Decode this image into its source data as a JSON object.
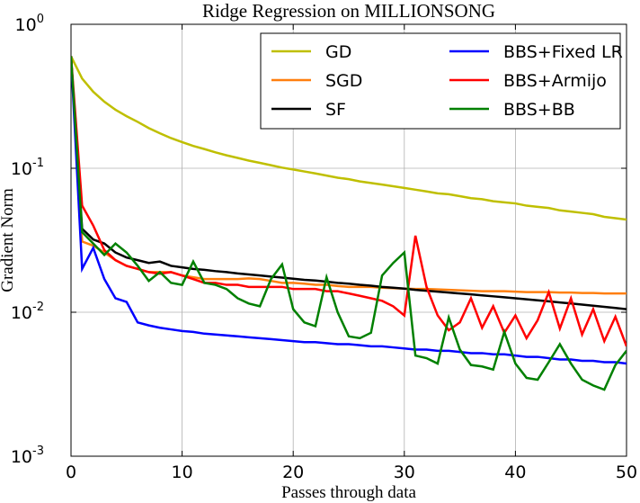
{
  "chart_data": {
    "type": "line",
    "title": "Ridge Regression on MILLIONSONG",
    "xlabel": "Passes through data",
    "ylabel": "Gradient Norm",
    "log_y": true,
    "grid": true,
    "legend": "upper right",
    "legend_columns": 2,
    "x": [
      0,
      1,
      2,
      3,
      4,
      5,
      6,
      7,
      8,
      9,
      10,
      11,
      12,
      13,
      14,
      15,
      16,
      17,
      18,
      19,
      20,
      21,
      22,
      23,
      24,
      25,
      26,
      27,
      28,
      29,
      30,
      31,
      32,
      33,
      34,
      35,
      36,
      37,
      38,
      39,
      40,
      41,
      42,
      43,
      44,
      45,
      46,
      47,
      48,
      49,
      50
    ],
    "xlim": [
      0,
      50
    ],
    "xticks": [
      0,
      10,
      20,
      30,
      40,
      50
    ],
    "ylim": [
      0.001,
      1
    ],
    "yticks": [
      {
        "value": 0.001,
        "label": "10",
        "exponent": "-3"
      },
      {
        "value": 0.01,
        "label": "10",
        "exponent": "-2"
      },
      {
        "value": 0.1,
        "label": "10",
        "exponent": "-1"
      },
      {
        "value": 1,
        "label": "10",
        "exponent": "0"
      }
    ],
    "series": [
      {
        "name": "GD",
        "color": "#bfbf00",
        "values": [
          0.6,
          0.42,
          0.34,
          0.29,
          0.255,
          0.23,
          0.21,
          0.19,
          0.175,
          0.162,
          0.152,
          0.143,
          0.136,
          0.129,
          0.123,
          0.118,
          0.113,
          0.109,
          0.105,
          0.101,
          0.098,
          0.095,
          0.092,
          0.089,
          0.086,
          0.084,
          0.081,
          0.079,
          0.077,
          0.075,
          0.073,
          0.071,
          0.069,
          0.067,
          0.066,
          0.064,
          0.062,
          0.061,
          0.059,
          0.058,
          0.057,
          0.055,
          0.054,
          0.053,
          0.051,
          0.05,
          0.049,
          0.048,
          0.046,
          0.045,
          0.044
        ]
      },
      {
        "name": "SGD",
        "color": "#ff7f0e",
        "values": [
          0.6,
          0.031,
          0.029,
          0.026,
          0.023,
          0.021,
          0.02,
          0.019,
          0.019,
          0.019,
          0.018,
          0.0175,
          0.017,
          0.017,
          0.017,
          0.017,
          0.0172,
          0.017,
          0.0165,
          0.016,
          0.016,
          0.0158,
          0.0155,
          0.0155,
          0.0152,
          0.015,
          0.015,
          0.015,
          0.0148,
          0.0147,
          0.0146,
          0.0145,
          0.0145,
          0.0144,
          0.0143,
          0.0142,
          0.0141,
          0.014,
          0.014,
          0.014,
          0.0139,
          0.0138,
          0.0138,
          0.0138,
          0.0137,
          0.0137,
          0.0136,
          0.0136,
          0.0135,
          0.0135,
          0.0135
        ]
      },
      {
        "name": "SF",
        "color": "#000000",
        "values": [
          0.6,
          0.038,
          0.032,
          0.03,
          0.026,
          0.024,
          0.023,
          0.022,
          0.0225,
          0.021,
          0.0205,
          0.02,
          0.0197,
          0.0193,
          0.019,
          0.0186,
          0.0183,
          0.018,
          0.0177,
          0.0174,
          0.0171,
          0.0168,
          0.0166,
          0.0163,
          0.016,
          0.0158,
          0.0155,
          0.0153,
          0.015,
          0.0148,
          0.0146,
          0.0143,
          0.0141,
          0.0139,
          0.0137,
          0.0135,
          0.0133,
          0.0131,
          0.0129,
          0.0127,
          0.0125,
          0.0123,
          0.0121,
          0.0119,
          0.0117,
          0.0115,
          0.0113,
          0.0111,
          0.0109,
          0.0107,
          0.0105
        ]
      },
      {
        "name": "BBS+Fixed LR",
        "color": "#0000ff",
        "values": [
          0.6,
          0.02,
          0.028,
          0.017,
          0.0125,
          0.0118,
          0.0085,
          0.0081,
          0.0078,
          0.0076,
          0.0074,
          0.0073,
          0.0071,
          0.007,
          0.0069,
          0.0068,
          0.0067,
          0.0066,
          0.0065,
          0.0064,
          0.0063,
          0.0062,
          0.0062,
          0.0061,
          0.006,
          0.006,
          0.0059,
          0.0058,
          0.0058,
          0.0057,
          0.0056,
          0.0055,
          0.0055,
          0.0054,
          0.0054,
          0.0053,
          0.0052,
          0.0052,
          0.0051,
          0.0051,
          0.005,
          0.0049,
          0.0049,
          0.0048,
          0.0047,
          0.0047,
          0.0046,
          0.0046,
          0.0045,
          0.0045,
          0.0044
        ]
      },
      {
        "name": "BBS+Armijo",
        "color": "#ff0000",
        "values": [
          0.6,
          0.055,
          0.04,
          0.027,
          0.023,
          0.021,
          0.02,
          0.019,
          0.0185,
          0.019,
          0.018,
          0.017,
          0.016,
          0.016,
          0.0155,
          0.0155,
          0.015,
          0.015,
          0.015,
          0.015,
          0.0145,
          0.0145,
          0.0145,
          0.014,
          0.014,
          0.0135,
          0.013,
          0.0125,
          0.012,
          0.011,
          0.0095,
          0.034,
          0.015,
          0.0095,
          0.0075,
          0.0085,
          0.0125,
          0.0078,
          0.011,
          0.0072,
          0.0095,
          0.0066,
          0.0088,
          0.0138,
          0.0077,
          0.0125,
          0.007,
          0.0105,
          0.0063,
          0.0093,
          0.0058
        ]
      },
      {
        "name": "BBS+BB",
        "color": "#008000",
        "values": [
          0.6,
          0.036,
          0.03,
          0.025,
          0.03,
          0.026,
          0.021,
          0.0165,
          0.019,
          0.016,
          0.0155,
          0.0225,
          0.016,
          0.0155,
          0.0145,
          0.0125,
          0.0115,
          0.011,
          0.017,
          0.0215,
          0.0105,
          0.0085,
          0.008,
          0.0175,
          0.01,
          0.0068,
          0.0066,
          0.0072,
          0.018,
          0.022,
          0.026,
          0.005,
          0.0048,
          0.0044,
          0.0092,
          0.0055,
          0.0043,
          0.0042,
          0.004,
          0.0073,
          0.0044,
          0.0035,
          0.0034,
          0.0045,
          0.006,
          0.0044,
          0.0034,
          0.0031,
          0.0029,
          0.0043,
          0.0054
        ]
      }
    ]
  }
}
